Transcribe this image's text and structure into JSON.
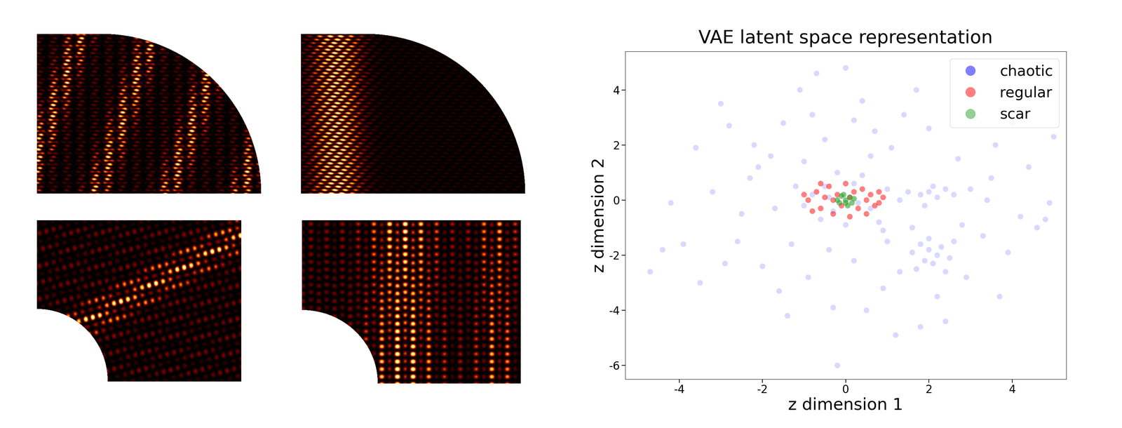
{
  "chart_data": {
    "type": "scatter",
    "title": "VAE latent space representation",
    "x_label": "z dimension 1",
    "y_label": "z dimension 2",
    "xlim": [
      -5.3,
      5.3
    ],
    "ylim": [
      -6.5,
      5.4
    ],
    "xticks": [
      -4,
      -2,
      0,
      2,
      4
    ],
    "yticks": [
      -6,
      -4,
      -2,
      0,
      2,
      4
    ],
    "legend": "upper right",
    "series": [
      {
        "name": "chaotic",
        "color": "#0000ff",
        "marker": "o",
        "x": [
          -0.8,
          -0.5,
          -0.3,
          0.2,
          0.6,
          -1.0,
          1.0,
          -0.6,
          0.4,
          -0.2,
          0.8,
          -1.2,
          1.3,
          0.0,
          -0.4,
          0.3,
          1.5,
          1.8,
          2.0,
          2.2,
          2.4,
          2.6,
          1.9,
          2.1,
          1.8,
          2.0,
          2.2,
          2.1,
          1.9,
          2.3,
          2.5,
          1.7,
          2.4,
          2.0,
          2.6,
          1.6,
          -4.7,
          -4.2,
          -3.6,
          -3.5,
          -3.0,
          -2.8,
          -2.6,
          -2.3,
          -2.0,
          -1.8,
          -1.6,
          -1.5,
          -1.3,
          -1.1,
          -0.9,
          -0.7,
          -0.5,
          -0.3,
          -0.2,
          0.0,
          0.2,
          0.4,
          0.5,
          0.7,
          0.9,
          1.1,
          1.2,
          1.4,
          1.6,
          1.8,
          2.0,
          2.2,
          2.4,
          2.7,
          2.9,
          3.1,
          3.3,
          3.5,
          3.7,
          3.9,
          4.0,
          4.2,
          4.4,
          4.6,
          4.8,
          5.0,
          4.9,
          3.0,
          3.4,
          -2.5,
          -3.2,
          -1.7,
          -2.1,
          -3.9,
          -4.4,
          1.0,
          -1.0,
          0.6,
          -0.4,
          2.8,
          3.6,
          -2.9,
          1.3,
          0.2,
          -1.4,
          1.7,
          -0.8,
          0.9,
          -2.2
        ],
        "y": [
          0.2,
          0.5,
          -0.4,
          0.6,
          -0.3,
          -0.2,
          0.4,
          -0.7,
          0.9,
          1.0,
          -0.8,
          0.5,
          0.0,
          -0.9,
          0.1,
          -0.1,
          0.3,
          0.2,
          0.3,
          0.1,
          0.4,
          0.2,
          -0.2,
          0.5,
          -1.6,
          -1.8,
          -2.0,
          -2.3,
          -2.2,
          -1.7,
          -2.1,
          -2.5,
          -2.6,
          -1.4,
          -1.5,
          -1.9,
          -2.6,
          -0.1,
          1.9,
          -3.0,
          3.5,
          2.7,
          -1.5,
          0.8,
          -2.4,
          1.6,
          -3.3,
          2.8,
          -1.6,
          4.0,
          -2.8,
          4.6,
          2.2,
          -3.9,
          -6.0,
          4.8,
          -2.2,
          3.6,
          -4.0,
          2.5,
          -3.2,
          1.9,
          -4.9,
          3.1,
          -1.0,
          -4.6,
          2.6,
          -3.5,
          -4.4,
          1.5,
          -2.8,
          3.0,
          -1.3,
          0.8,
          -3.5,
          -1.9,
          2.8,
          -0.6,
          1.2,
          -1.0,
          -0.7,
          2.3,
          -0.1,
          0.4,
          0.0,
          -0.5,
          0.3,
          -0.3,
          1.2,
          -1.6,
          -1.8,
          -1.5,
          1.4,
          1.6,
          -1.8,
          -0.9,
          2.0,
          -2.3,
          -2.6,
          2.9,
          -4.2,
          4.0,
          3.1,
          -1.1,
          2.0
        ]
      },
      {
        "name": "regular",
        "color": "#ff0000",
        "marker": "o",
        "x": [
          -0.9,
          -0.7,
          -0.6,
          -0.5,
          -0.4,
          -0.3,
          -0.2,
          -0.1,
          0.0,
          0.1,
          0.2,
          0.3,
          0.4,
          0.5,
          0.6,
          0.7,
          0.8,
          0.9,
          -0.8,
          -1.0,
          0.5,
          -0.3,
          0.1,
          0.8,
          -0.6
        ],
        "y": [
          0.0,
          0.3,
          -0.3,
          0.1,
          0.5,
          -0.5,
          0.2,
          -0.2,
          0.6,
          -0.6,
          0.3,
          -0.3,
          0.4,
          0.0,
          0.2,
          -0.2,
          0.3,
          0.1,
          -0.4,
          0.2,
          -0.5,
          0.0,
          0.1,
          -0.1,
          0.6
        ]
      },
      {
        "name": "scar",
        "color": "#2ca02c",
        "marker": "o",
        "x": [
          0.0,
          0.1,
          -0.1,
          0.15,
          -0.15,
          0.05,
          -0.05,
          0.2,
          -0.2,
          0.0
        ],
        "y": [
          0.0,
          0.1,
          0.15,
          -0.1,
          -0.1,
          -0.2,
          0.2,
          0.05,
          0.0,
          -0.1
        ]
      }
    ]
  }
}
